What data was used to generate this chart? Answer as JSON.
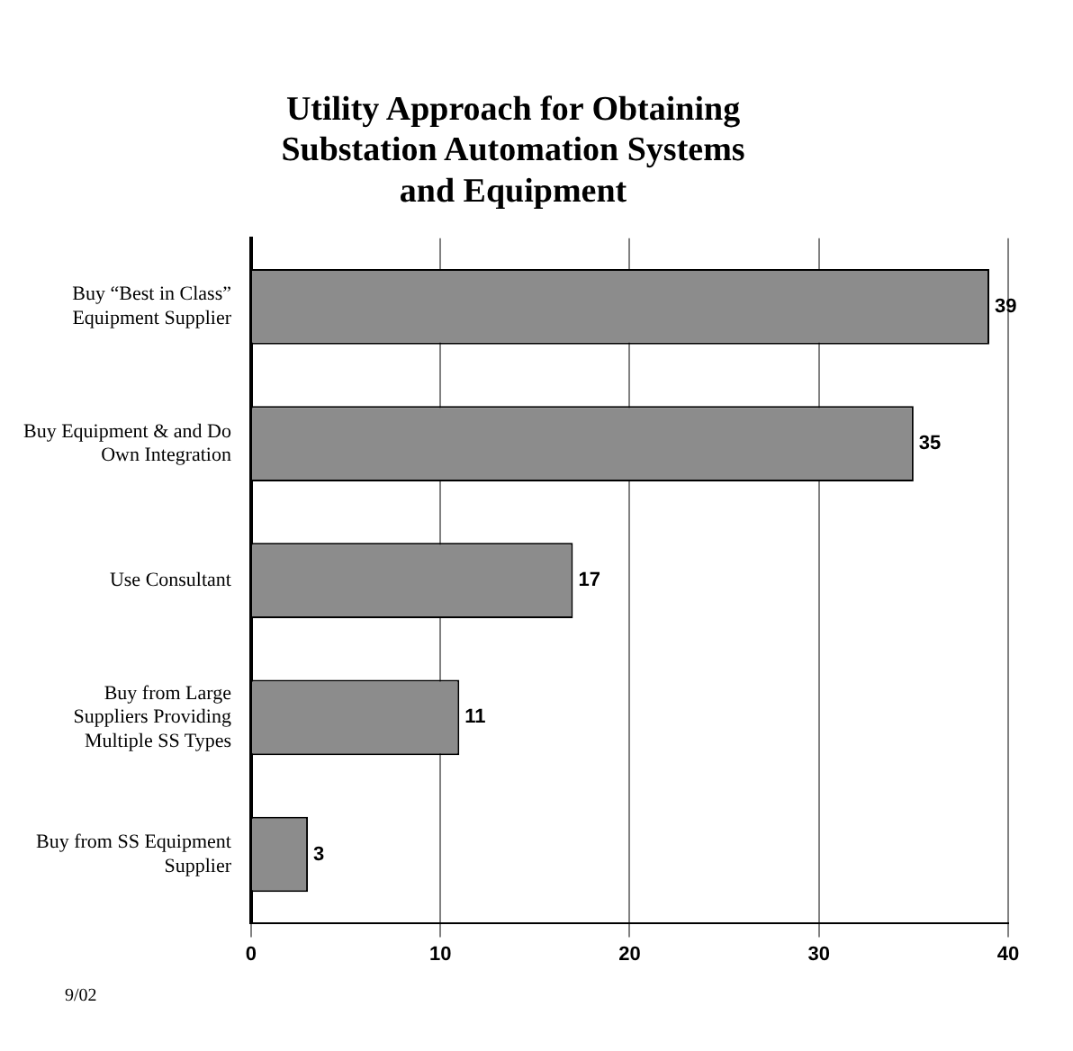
{
  "chart_data": {
    "type": "bar",
    "orientation": "horizontal",
    "title": "Utility Approach for Obtaining Substation Automation Systems and Equipment",
    "categories": [
      "Buy “Best in Class” Equipment Supplier",
      "Buy Equipment & and Do Own Integration",
      "Use Consultant",
      "Buy from Large Suppliers Providing Multiple SS Types",
      "Buy from SS Equipment Supplier"
    ],
    "values": [
      39,
      35,
      17,
      11,
      3
    ],
    "color": "#8c8c8c",
    "xlim": [
      0,
      40
    ],
    "xticks": [
      0,
      10,
      20,
      30,
      40
    ],
    "grid": "x",
    "data_labels": true,
    "annotations": [
      "9/02"
    ]
  }
}
